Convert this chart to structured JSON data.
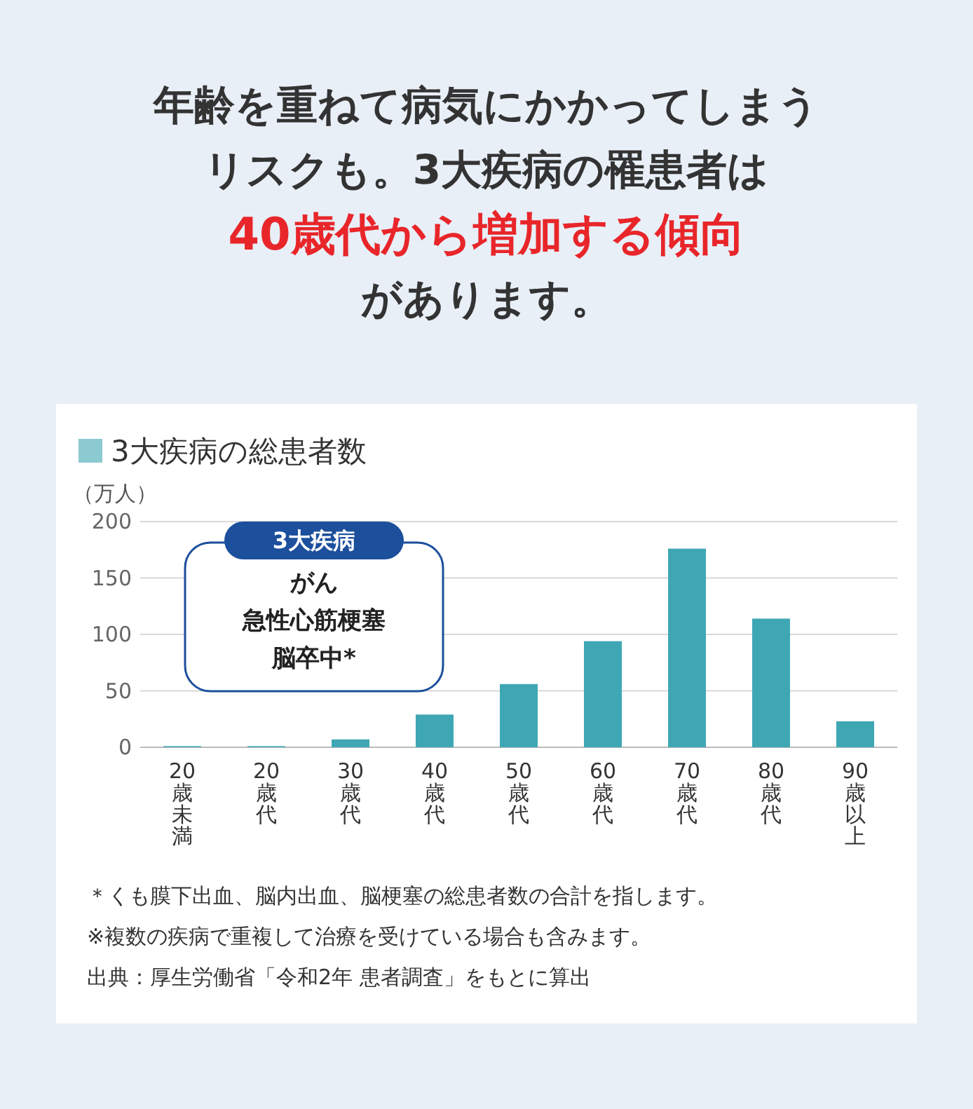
{
  "chart_data": {
    "type": "bar",
    "title": "年齢を重ねて病気にかかってしまうリスクも。3大疾病の罹患者は**40歳代から増加する傾向**があります。",
    "ylabel": "（万人）",
    "categories": [
      "20歳未満",
      "20歳代",
      "30歳代",
      "40歳代",
      "50歳代",
      "60歳代",
      "70歳代",
      "80歳代",
      "90歳以上"
    ],
    "series": [
      {
        "name": "3大疾病の総患者数",
        "color": "#3fa7b4",
        "values": [
          1,
          1,
          7,
          29,
          56,
          94,
          176,
          114,
          23
        ]
      }
    ],
    "ylim": [
      0,
      200
    ],
    "yticks": [
      0,
      50,
      100,
      150,
      200
    ],
    "grid": "y",
    "legend": "top left",
    "annotations": [
      "3大疾病",
      "がん",
      "急性心筋梗塞",
      "脳卒中*",
      "＊くも膜下出血、脳内出血、脳梗塞の総患者数の合計を指します。",
      "※複数の疾病で重複して治療を受けている場合も含みます。",
      "出典：厚生労働省「令和2年 患者調査」をもとに算出"
    ]
  }
}
